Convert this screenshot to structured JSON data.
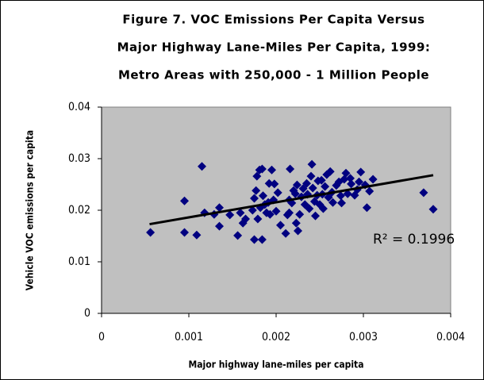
{
  "chart_data": {
    "type": "scatter",
    "title": [
      "Figure 7. VOC Emissions Per Capita Versus",
      "Major Highway Lane-Miles Per Capita, 1999:",
      "Metro Areas with 250,000 - 1 Million People"
    ],
    "x_label": "Major highway lane-miles per capita",
    "y_label": "Vehicle VOC emissions per capita",
    "annotation": "R² = 0.1996",
    "color": "#000080",
    "plot_background": "#c0c0c0",
    "x": [
      0.00056,
      0.00095,
      0.00095,
      0.00109,
      0.00115,
      0.00118,
      0.00129,
      0.00135,
      0.00135,
      0.00147,
      0.00156,
      0.00159,
      0.00162,
      0.00165,
      0.00173,
      0.00175,
      0.00175,
      0.00177,
      0.00178,
      0.00179,
      0.00181,
      0.00182,
      0.00184,
      0.00184,
      0.00185,
      0.00187,
      0.00189,
      0.00191,
      0.00192,
      0.00193,
      0.00195,
      0.00197,
      0.00198,
      0.002,
      0.00202,
      0.00205,
      0.00211,
      0.00213,
      0.00215,
      0.00215,
      0.00216,
      0.00218,
      0.0022,
      0.00222,
      0.00223,
      0.00224,
      0.00225,
      0.00227,
      0.00229,
      0.00231,
      0.00233,
      0.00235,
      0.00236,
      0.00238,
      0.0024,
      0.00241,
      0.00242,
      0.00244,
      0.00245,
      0.00247,
      0.00248,
      0.0025,
      0.00252,
      0.00253,
      0.00254,
      0.00256,
      0.00258,
      0.0026,
      0.00262,
      0.00264,
      0.00265,
      0.00269,
      0.00272,
      0.00274,
      0.00275,
      0.00278,
      0.0028,
      0.00282,
      0.00285,
      0.00286,
      0.0029,
      0.00293,
      0.00295,
      0.00297,
      0.00302,
      0.00304,
      0.00307,
      0.00311,
      0.00369,
      0.0038
    ],
    "y": [
      0.0157,
      0.0218,
      0.0157,
      0.0152,
      0.0285,
      0.0195,
      0.0192,
      0.0205,
      0.0169,
      0.0191,
      0.0151,
      0.0195,
      0.0175,
      0.0183,
      0.02,
      0.0223,
      0.0143,
      0.0238,
      0.0266,
      0.0183,
      0.0278,
      0.0205,
      0.028,
      0.0143,
      0.0228,
      0.0211,
      0.0195,
      0.0215,
      0.0252,
      0.0192,
      0.0278,
      0.022,
      0.0251,
      0.0198,
      0.0234,
      0.0171,
      0.0155,
      0.0191,
      0.0195,
      0.022,
      0.028,
      0.0214,
      0.0238,
      0.0232,
      0.0175,
      0.0249,
      0.016,
      0.0192,
      0.0226,
      0.0242,
      0.0211,
      0.0252,
      0.0231,
      0.0203,
      0.0266,
      0.0289,
      0.0243,
      0.0217,
      0.0189,
      0.0229,
      0.0257,
      0.0211,
      0.0258,
      0.0231,
      0.0203,
      0.0246,
      0.0269,
      0.0225,
      0.0275,
      0.0235,
      0.0215,
      0.0248,
      0.0255,
      0.0228,
      0.0214,
      0.026,
      0.0272,
      0.0232,
      0.0262,
      0.0251,
      0.0229,
      0.024,
      0.0255,
      0.0274,
      0.0249,
      0.0205,
      0.0237,
      0.026,
      0.0234,
      0.0202
    ],
    "trendline": {
      "x": [
        0.00055,
        0.0038
      ],
      "y": [
        0.0173,
        0.0268
      ],
      "color": "#000000"
    },
    "xlim": [
      0,
      0.004
    ],
    "xticks": [
      0,
      0.001,
      0.002,
      0.003,
      0.004
    ],
    "ylim": [
      0,
      0.04
    ],
    "yticks": [
      0,
      0.01,
      0.02,
      0.03,
      0.04
    ]
  }
}
